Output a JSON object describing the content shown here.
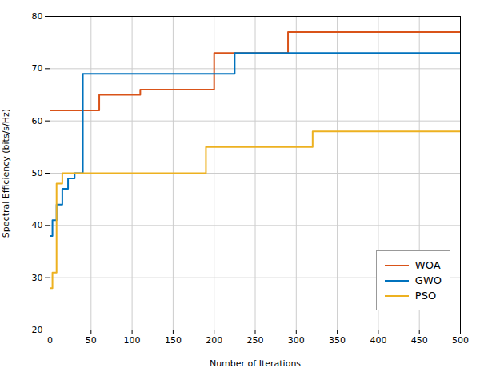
{
  "chart_data": {
    "type": "step",
    "xlabel": "Number of Iterations",
    "ylabel": "Spectral Efficiency (bits/s/Hz)",
    "xlim": [
      0,
      500
    ],
    "ylim": [
      20,
      80
    ],
    "xticks": [
      0,
      50,
      100,
      150,
      200,
      250,
      300,
      350,
      400,
      450,
      500
    ],
    "yticks": [
      20,
      30,
      40,
      50,
      60,
      70,
      80
    ],
    "grid": true,
    "legend": "lower right",
    "series": [
      {
        "name": "WOA",
        "color": "#D95319",
        "x": [
          0,
          3,
          3,
          60,
          60,
          110,
          110,
          200,
          200,
          290,
          290,
          500
        ],
        "values": [
          62,
          62,
          62,
          62,
          65,
          65,
          66,
          66,
          73,
          73,
          77,
          77
        ]
      },
      {
        "name": "GWO",
        "color": "#0072BD",
        "x": [
          0,
          3,
          3,
          8,
          8,
          15,
          15,
          22,
          22,
          30,
          30,
          40,
          40,
          60,
          60,
          225,
          225,
          500
        ],
        "values": [
          38,
          38,
          41,
          41,
          44,
          44,
          47,
          47,
          49,
          49,
          50,
          50,
          69,
          69,
          69,
          69,
          73,
          73
        ]
      },
      {
        "name": "PSO",
        "color": "#EDB120",
        "x": [
          0,
          3,
          3,
          8,
          8,
          15,
          15,
          60,
          60,
          190,
          190,
          220,
          220,
          320,
          320,
          500
        ],
        "values": [
          28,
          28,
          31,
          31,
          48,
          48,
          50,
          50,
          50,
          50,
          55,
          55,
          55,
          58,
          58,
          58
        ]
      }
    ]
  }
}
